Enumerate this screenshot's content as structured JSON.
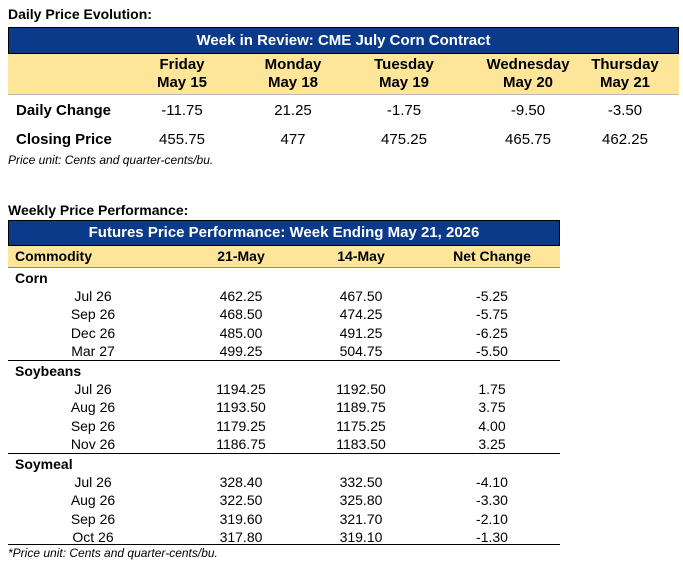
{
  "daily": {
    "section_title": "Daily Price Evolution:",
    "banner": "Week in Review: CME July Corn Contract",
    "days": [
      {
        "day": "Friday",
        "date": "May 15",
        "change": "-11.75",
        "close": "455.75"
      },
      {
        "day": "Monday",
        "date": "May 18",
        "change": "21.25",
        "close": "477"
      },
      {
        "day": "Tuesday",
        "date": "May 19",
        "change": "-1.75",
        "close": "475.25"
      },
      {
        "day": "Wednesday",
        "date": "May 20",
        "change": "-9.50",
        "close": "465.75"
      },
      {
        "day": "Thursday",
        "date": "May 21",
        "change": "-3.50",
        "close": "462.25"
      }
    ],
    "row_labels": {
      "change": "Daily Change",
      "close": "Closing Price"
    },
    "note": "Price unit: Cents and quarter-cents/bu."
  },
  "weekly": {
    "section_title": "Weekly Price Performance:",
    "banner": "Futures Price Performance: Week Ending May 21, 2026",
    "headers": [
      "Commodity",
      "21-May",
      "14-May",
      "Net Change"
    ],
    "groups": [
      {
        "name": "Corn",
        "rows": [
          [
            "Jul 26",
            "462.25",
            "467.50",
            "-5.25"
          ],
          [
            "Sep 26",
            "468.50",
            "474.25",
            "-5.75"
          ],
          [
            "Dec 26",
            "485.00",
            "491.25",
            "-6.25"
          ],
          [
            "Mar 27",
            "499.25",
            "504.75",
            "-5.50"
          ]
        ]
      },
      {
        "name": "Soybeans",
        "rows": [
          [
            "Jul 26",
            "1194.25",
            "1192.50",
            "1.75"
          ],
          [
            "Aug 26",
            "1193.50",
            "1189.75",
            "3.75"
          ],
          [
            "Sep 26",
            "1179.25",
            "1175.25",
            "4.00"
          ],
          [
            "Nov 26",
            "1186.75",
            "1183.50",
            "3.25"
          ]
        ]
      },
      {
        "name": "Soymeal",
        "rows": [
          [
            "Jul 26",
            "328.40",
            "332.50",
            "-4.10"
          ],
          [
            "Aug 26",
            "322.50",
            "325.80",
            "-3.30"
          ],
          [
            "Sep 26",
            "319.60",
            "321.70",
            "-2.10"
          ],
          [
            "Oct 26",
            "317.80",
            "319.10",
            "-1.30"
          ]
        ]
      }
    ],
    "note": "*Price unit: Cents and quarter-cents/bu."
  }
}
